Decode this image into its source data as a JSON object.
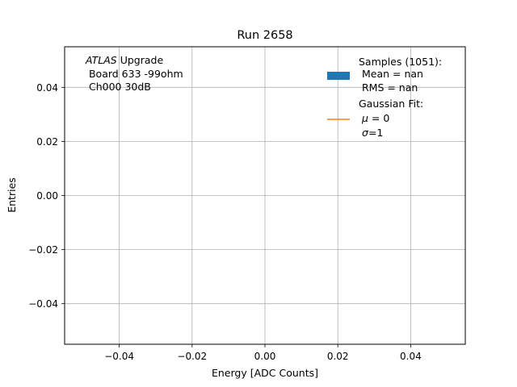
{
  "chart_data": {
    "type": "line",
    "title": "Run 2658",
    "xlabel": "Energy [ADC Counts]",
    "ylabel": "Entries",
    "xlim": [
      -0.055,
      0.055
    ],
    "ylim": [
      -0.055,
      0.055
    ],
    "x_ticks": [
      -0.04,
      -0.02,
      0.0,
      0.02,
      0.04
    ],
    "x_tick_labels": [
      "−0.04",
      "−0.02",
      "0.00",
      "0.02",
      "0.04"
    ],
    "y_ticks": [
      -0.04,
      -0.02,
      0.0,
      0.02,
      0.04
    ],
    "y_tick_labels": [
      "−0.04",
      "−0.02",
      "0.00",
      "0.02",
      "0.04"
    ],
    "grid": true,
    "legend_position": "top-right",
    "colors": {
      "samples": "#1f77b4",
      "fit": "#ff7f0e",
      "grid": "#b0b0b0"
    },
    "series": [],
    "annotation": {
      "line1_italic": "ATLAS",
      "line1_rest": " Upgrade",
      "line2": " Board 633 -99ohm",
      "line3": " Ch000 30dB"
    },
    "legend": {
      "samples": {
        "line1": "Samples (1051):",
        "line2": " Mean = nan",
        "line3": " RMS = nan"
      },
      "fit": {
        "line1": "Gaussian Fit:",
        "line2_sym": "μ",
        "line2_rest": " = 0",
        "line3_sym": "σ",
        "line3_rest": "=1"
      }
    }
  }
}
